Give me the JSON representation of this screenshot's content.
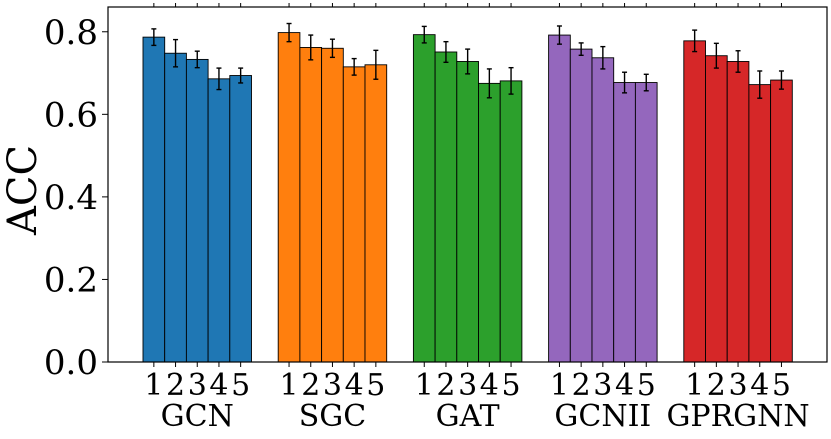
{
  "chart_data": {
    "type": "bar",
    "ylabel": "ACC",
    "xlabel": "",
    "ylim": [
      0,
      0.86
    ],
    "yticks": [
      0.0,
      0.2,
      0.4,
      0.6,
      0.8
    ],
    "ytick_labels": [
      "0.0",
      "0.2",
      "0.4",
      "0.6",
      "0.8"
    ],
    "grid": false,
    "legend": "none",
    "subcategories": [
      "1",
      "2",
      "3",
      "4",
      "5"
    ],
    "groups": [
      {
        "name": "GCN",
        "color": "#1f77b4",
        "values": [
          0.787,
          0.748,
          0.733,
          0.686,
          0.694
        ],
        "errors": [
          0.02,
          0.033,
          0.02,
          0.026,
          0.018
        ]
      },
      {
        "name": "SGC",
        "color": "#ff7f0e",
        "values": [
          0.798,
          0.762,
          0.76,
          0.715,
          0.72
        ],
        "errors": [
          0.022,
          0.03,
          0.022,
          0.02,
          0.035
        ]
      },
      {
        "name": "GAT",
        "color": "#2ca02c",
        "values": [
          0.793,
          0.751,
          0.728,
          0.675,
          0.681
        ],
        "errors": [
          0.02,
          0.025,
          0.03,
          0.035,
          0.032
        ]
      },
      {
        "name": "GCNII",
        "color": "#9467bd",
        "values": [
          0.792,
          0.758,
          0.737,
          0.677,
          0.677
        ],
        "errors": [
          0.022,
          0.015,
          0.027,
          0.025,
          0.02
        ]
      },
      {
        "name": "GPRGNN",
        "color": "#d62728",
        "values": [
          0.778,
          0.742,
          0.728,
          0.672,
          0.683
        ],
        "errors": [
          0.026,
          0.03,
          0.026,
          0.033,
          0.022
        ]
      }
    ]
  }
}
